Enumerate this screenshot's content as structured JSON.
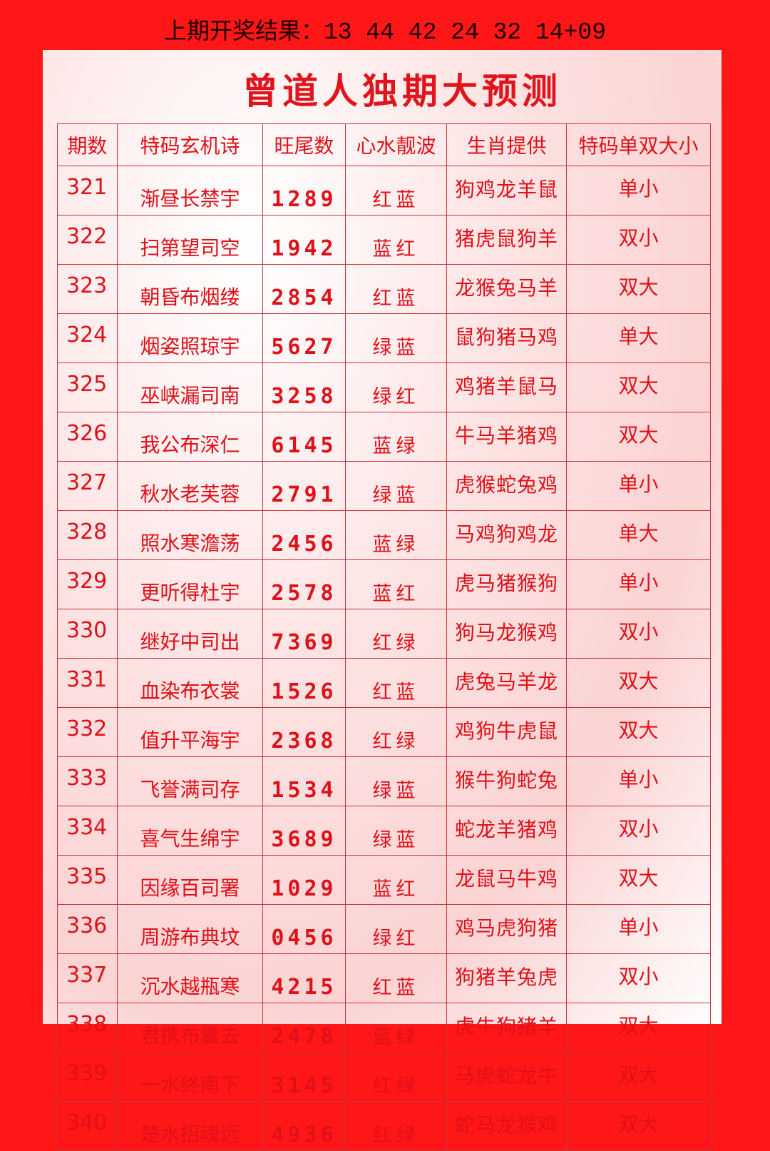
{
  "header": {
    "label": "上期开奖结果：",
    "numbers": "13 44 42 24 32 14+09"
  },
  "title": "曾道人独期大预测",
  "table": {
    "columns": [
      "期数",
      "特码玄机诗",
      "旺尾数",
      "心水靓波",
      "生肖提供",
      "特码单双大小"
    ],
    "rows": [
      [
        "321",
        "渐昼长禁宇",
        "1289",
        "红蓝",
        "狗鸡龙羊鼠",
        "单小"
      ],
      [
        "322",
        "扫第望司空",
        "1942",
        "蓝红",
        "猪虎鼠狗羊",
        "双小"
      ],
      [
        "323",
        "朝昏布烟缕",
        "2854",
        "红蓝",
        "龙猴兔马羊",
        "双大"
      ],
      [
        "324",
        "烟姿照琼宇",
        "5627",
        "绿蓝",
        "鼠狗猪马鸡",
        "单大"
      ],
      [
        "325",
        "巫峡漏司南",
        "3258",
        "绿红",
        "鸡猪羊鼠马",
        "双大"
      ],
      [
        "326",
        "我公布深仁",
        "6145",
        "蓝绿",
        "牛马羊猪鸡",
        "双大"
      ],
      [
        "327",
        "秋水老芙蓉",
        "2791",
        "绿蓝",
        "虎猴蛇兔鸡",
        "单小"
      ],
      [
        "328",
        "照水寒澹荡",
        "2456",
        "蓝绿",
        "马鸡狗鸡龙",
        "单大"
      ],
      [
        "329",
        "更听得杜宇",
        "2578",
        "蓝红",
        "虎马猪猴狗",
        "单小"
      ],
      [
        "330",
        "继好中司出",
        "7369",
        "红绿",
        "狗马龙猴鸡",
        "双小"
      ],
      [
        "331",
        "血染布衣裳",
        "1526",
        "红蓝",
        "虎兔马羊龙",
        "双大"
      ],
      [
        "332",
        "值升平海宇",
        "2368",
        "红绿",
        "鸡狗牛虎鼠",
        "双大"
      ],
      [
        "333",
        "飞誉满司存",
        "1534",
        "绿蓝",
        "猴牛狗蛇兔",
        "单小"
      ],
      [
        "334",
        "喜气生绵宇",
        "3689",
        "绿蓝",
        "蛇龙羊猪鸡",
        "双小"
      ],
      [
        "335",
        "因缘百司署",
        "1029",
        "蓝红",
        "龙鼠马牛鸡",
        "双大"
      ],
      [
        "336",
        "周游布典坟",
        "0456",
        "绿红",
        "鸡马虎狗猪",
        "单小"
      ],
      [
        "337",
        "沉水越瓶寒",
        "4215",
        "红蓝",
        "狗猪羊兔虎",
        "双小"
      ],
      [
        "338",
        "君携布囊去",
        "2478",
        "蓝绿",
        "虎牛狗猪羊",
        "双大"
      ],
      [
        "339",
        "一水终南下",
        "3145",
        "红绿",
        "马虎蛇龙牛",
        "双大"
      ],
      [
        "340",
        "楚水招魂远",
        "4936",
        "红绿",
        "蛇马龙猴鸡",
        "双大"
      ]
    ]
  }
}
